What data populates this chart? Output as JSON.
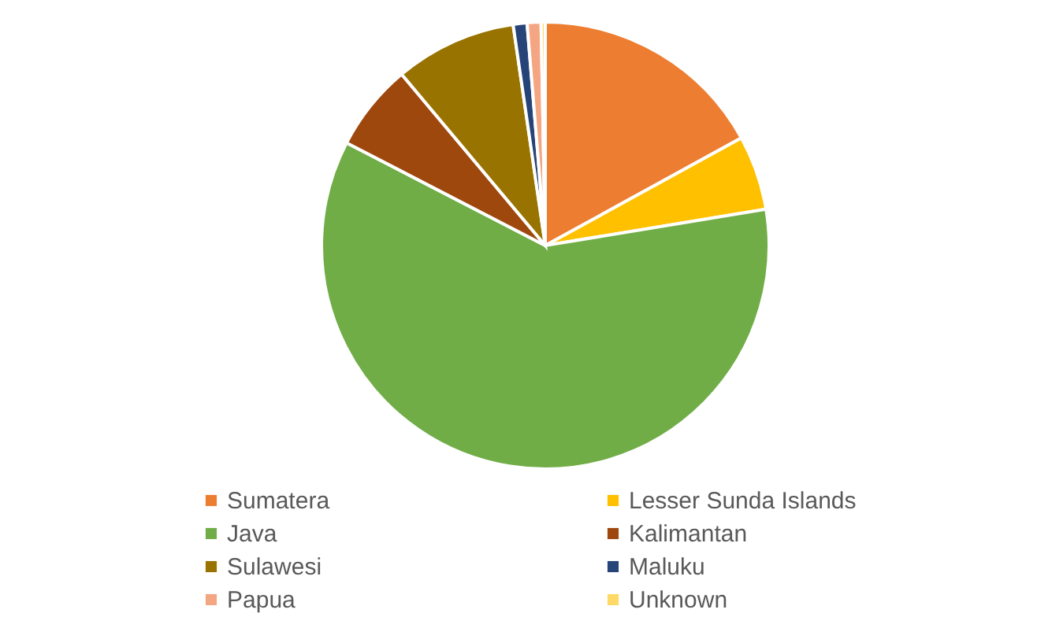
{
  "chart_data": {
    "type": "pie",
    "categories": [
      "Sumatera",
      "Lesser Sunda Islands",
      "Java",
      "Kalimantan",
      "Sulawesi",
      "Maluku",
      "Papua",
      "Unknown"
    ],
    "values": [
      17.0,
      5.4,
      60.2,
      6.3,
      8.8,
      1.0,
      1.0,
      0.3
    ],
    "colors": [
      "#ed7d31",
      "#ffc000",
      "#70ad47",
      "#9e480e",
      "#997300",
      "#264478",
      "#f4a582",
      "#ffd966"
    ],
    "legend": "bottom"
  }
}
